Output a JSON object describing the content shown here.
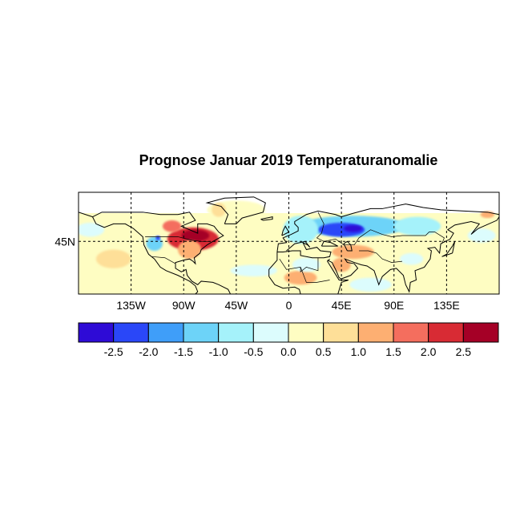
{
  "title": "Prognose Januar 2019 Temperaturanomalie",
  "chart_data": {
    "type": "heatmap",
    "projection": "cylindrical",
    "lon_range": [
      -180,
      180
    ],
    "lat_range": [
      0,
      87
    ],
    "grid": "dashed",
    "x_ticks": [
      {
        "lon": -135,
        "label": "135W"
      },
      {
        "lon": -90,
        "label": "90W"
      },
      {
        "lon": -45,
        "label": "45W"
      },
      {
        "lon": 0,
        "label": "0"
      },
      {
        "lon": 45,
        "label": "45E"
      },
      {
        "lon": 90,
        "label": "90E"
      },
      {
        "lon": 135,
        "label": "135E"
      }
    ],
    "y_ticks": [
      {
        "lat": 45,
        "label": "45N"
      }
    ],
    "colorbar": {
      "levels": [
        -3.0,
        -2.5,
        -2.0,
        -1.5,
        -1.0,
        -0.5,
        0.0,
        0.5,
        1.0,
        1.5,
        2.0,
        2.5,
        3.0
      ],
      "tick_labels": [
        "-2.5",
        "-2.0",
        "-1.5",
        "-1.0",
        "-0.5",
        "0.0",
        "0.5",
        "1.0",
        "1.5",
        "2.0",
        "2.5"
      ],
      "colors": [
        "#2e0bd6",
        "#2a47f8",
        "#3f9ef9",
        "#6dd3f8",
        "#a5f2fa",
        "#dcfcfd",
        "#fefdc2",
        "#fedf98",
        "#fdaf72",
        "#f46e5e",
        "#d82b34",
        "#a50026"
      ]
    },
    "background_value": 0.25,
    "anomaly_regions": [
      {
        "lon": -82,
        "lat": 47,
        "rlon": 22,
        "rlat": 10,
        "value": 2.0
      },
      {
        "lon": -80,
        "lat": 50,
        "rlon": 12,
        "rlat": 5,
        "value": 2.7
      },
      {
        "lon": -85,
        "lat": 38,
        "rlon": 10,
        "rlat": 8,
        "value": 1.3
      },
      {
        "lon": -100,
        "lat": 58,
        "rlon": 8,
        "rlat": 5,
        "value": 1.6
      },
      {
        "lon": -115,
        "lat": 43,
        "rlon": 7,
        "rlat": 6,
        "value": -1.3
      },
      {
        "lon": -112,
        "lat": 48,
        "rlon": 2,
        "rlat": 2,
        "value": -2.3
      },
      {
        "lon": -45,
        "lat": 72,
        "rlon": 25,
        "rlat": 8,
        "value": 0.0
      },
      {
        "lon": -60,
        "lat": 72,
        "rlon": 6,
        "rlat": 6,
        "value": 0.8
      },
      {
        "lon": 55,
        "lat": 58,
        "rlon": 45,
        "rlat": 9,
        "value": -1.2
      },
      {
        "lon": 45,
        "lat": 55,
        "rlon": 20,
        "rlat": 6,
        "value": -2.2
      },
      {
        "lon": 55,
        "lat": 56,
        "rlon": 8,
        "rlat": 3,
        "value": -2.7
      },
      {
        "lon": 10,
        "lat": 55,
        "rlon": 15,
        "rlat": 12,
        "value": -0.7
      },
      {
        "lon": 110,
        "lat": 58,
        "rlon": 20,
        "rlat": 8,
        "value": -0.6
      },
      {
        "lon": 55,
        "lat": 36,
        "rlon": 18,
        "rlat": 6,
        "value": 1.1
      },
      {
        "lon": 45,
        "lat": 25,
        "rlon": 8,
        "rlat": 6,
        "value": 1.0
      },
      {
        "lon": 10,
        "lat": 14,
        "rlon": 14,
        "rlat": 6,
        "value": 1.2
      },
      {
        "lon": 15,
        "lat": 25,
        "rlon": 12,
        "rlat": 6,
        "value": -0.3
      },
      {
        "lon": -30,
        "lat": 20,
        "rlon": 20,
        "rlat": 5,
        "value": -0.3
      },
      {
        "lon": 70,
        "lat": 8,
        "rlon": 18,
        "rlat": 6,
        "value": -0.3
      },
      {
        "lon": 105,
        "lat": 30,
        "rlon": 10,
        "rlat": 5,
        "value": -0.2
      },
      {
        "lon": -170,
        "lat": 55,
        "rlon": 12,
        "rlat": 6,
        "value": -0.4
      },
      {
        "lon": 165,
        "lat": 50,
        "rlon": 12,
        "rlat": 6,
        "value": -0.4
      },
      {
        "lon": -150,
        "lat": 30,
        "rlon": 15,
        "rlat": 8,
        "value": 0.8
      },
      {
        "lon": 170,
        "lat": 68,
        "rlon": 6,
        "rlat": 3,
        "value": 1.0
      }
    ]
  }
}
